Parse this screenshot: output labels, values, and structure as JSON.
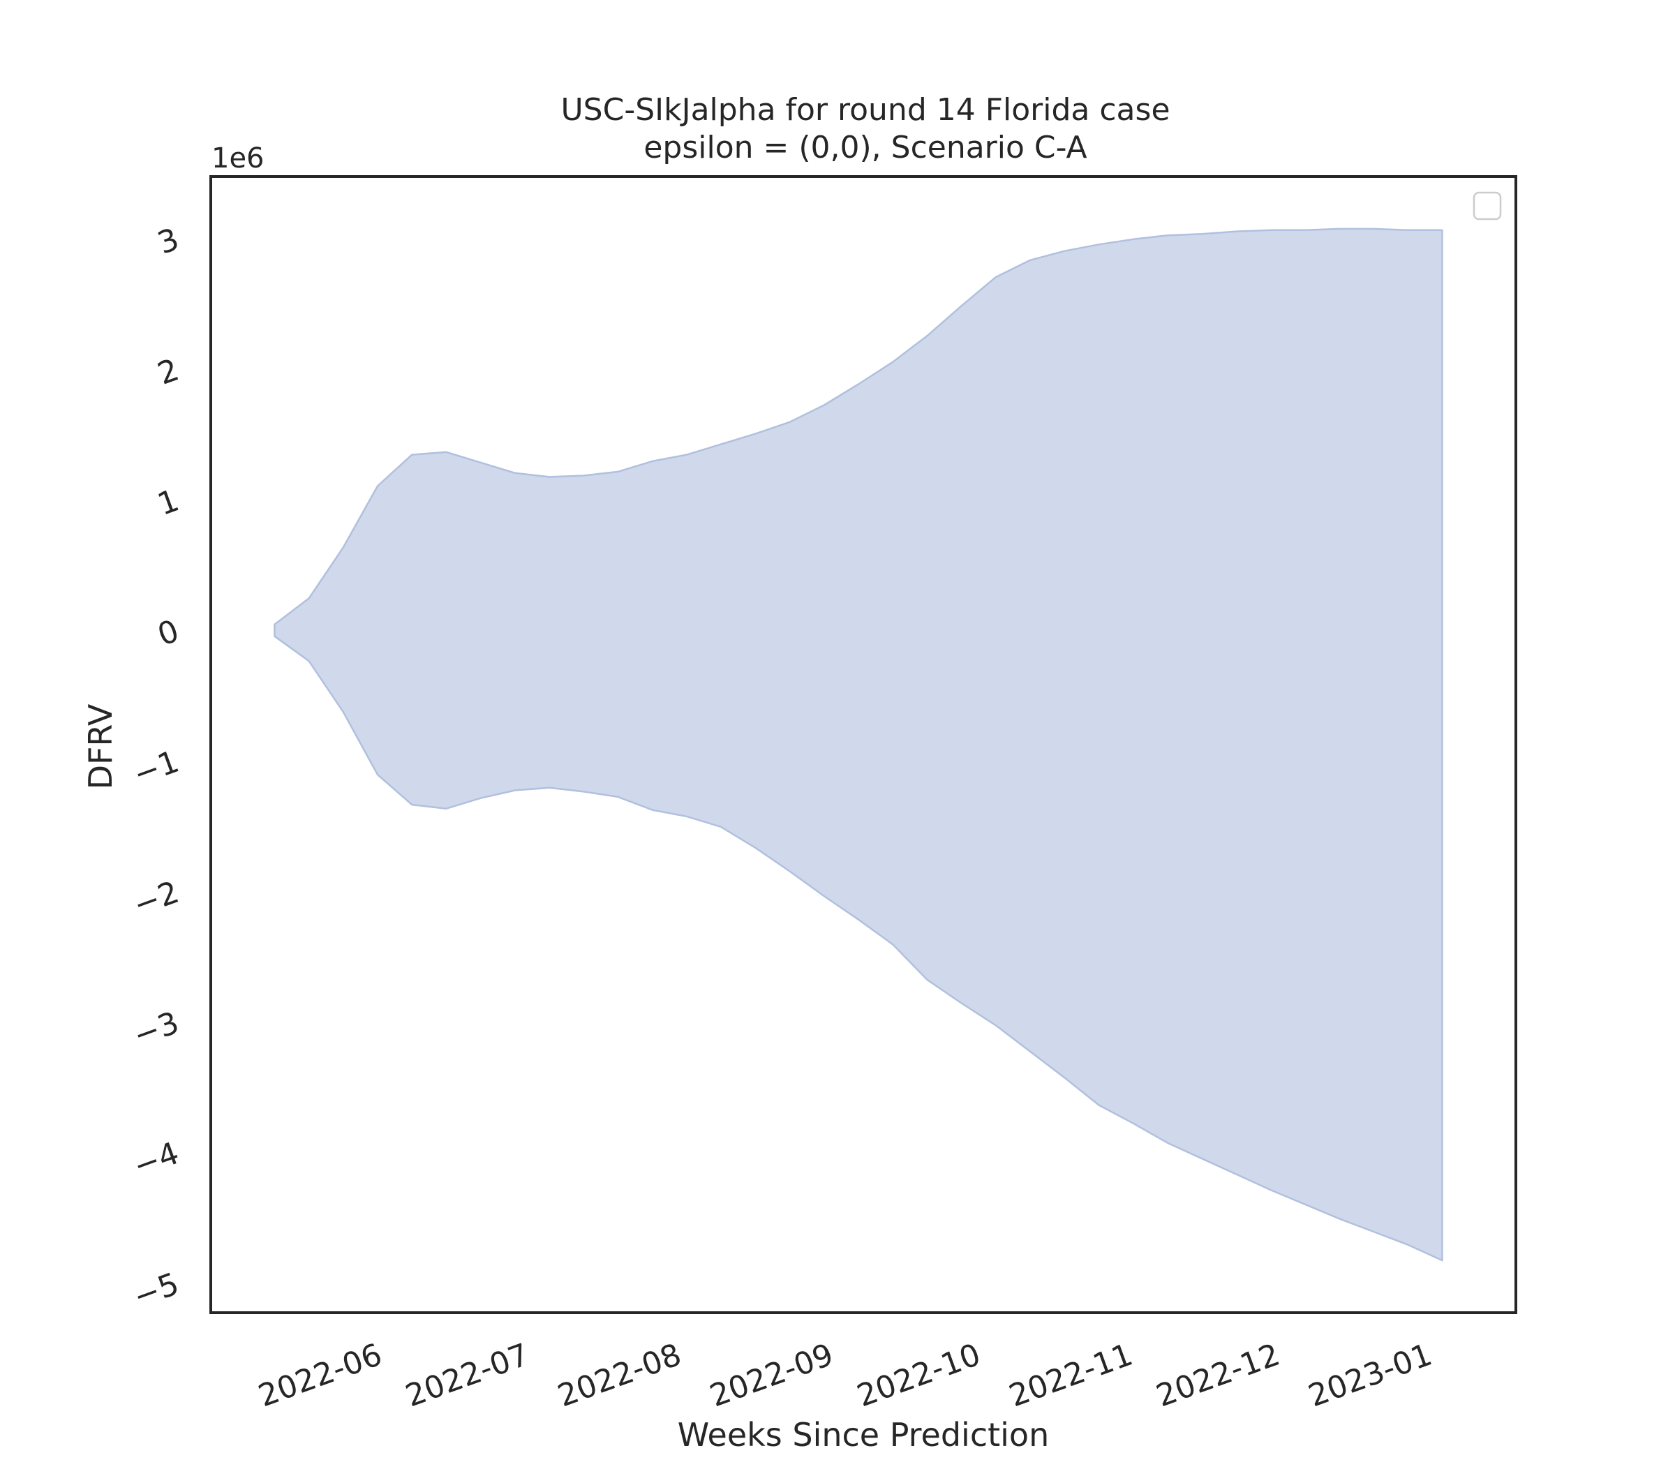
{
  "chart_data": {
    "type": "area",
    "title_line1": "USC-SIkJalpha for round 14 Florida case",
    "title_line2": "epsilon = (0,0), Scenario C-A",
    "xlabel": "Weeks Since Prediction",
    "ylabel": "DFRV",
    "y_offset_label": "1e6",
    "y_scale": 1000000,
    "ylim": [
      -5.2,
      3.5
    ],
    "y_ticks": [
      3,
      2,
      1,
      0,
      -1,
      -2,
      -3,
      -4,
      -5
    ],
    "y_tick_labels": [
      "3",
      "2",
      "1",
      "0",
      "−1",
      "−2",
      "−3",
      "−4",
      "−5"
    ],
    "xlim": [
      "2022-05-01",
      "2023-01-22"
    ],
    "x_ticks": [
      "2022-06-01",
      "2022-07-01",
      "2022-08-01",
      "2022-09-01",
      "2022-10-01",
      "2022-11-01",
      "2022-12-01",
      "2023-01-01"
    ],
    "x_tick_labels": [
      "2022-06",
      "2022-07",
      "2022-08",
      "2022-09",
      "2022-10",
      "2022-11",
      "2022-12",
      "2023-01"
    ],
    "band_color": "#b0c0de",
    "band_opacity": 0.6,
    "legend": "top-right",
    "legend_entries": [],
    "grid": false,
    "series": [
      {
        "x": [
          "2022-05-14",
          "2022-05-21",
          "2022-05-28",
          "2022-06-04",
          "2022-06-11",
          "2022-06-18",
          "2022-06-25",
          "2022-07-02",
          "2022-07-09",
          "2022-07-16",
          "2022-07-23",
          "2022-07-30",
          "2022-08-06",
          "2022-08-13",
          "2022-08-20",
          "2022-08-27",
          "2022-09-03",
          "2022-09-10",
          "2022-09-17",
          "2022-09-24",
          "2022-10-01",
          "2022-10-08",
          "2022-10-15",
          "2022-10-22",
          "2022-10-29",
          "2022-11-05",
          "2022-11-12",
          "2022-11-19",
          "2022-11-26",
          "2022-12-03",
          "2022-12-10",
          "2022-12-17",
          "2022-12-24",
          "2022-12-31",
          "2023-01-07"
        ],
        "upper": [
          0.07,
          0.27,
          0.66,
          1.13,
          1.37,
          1.39,
          1.31,
          1.23,
          1.2,
          1.21,
          1.24,
          1.32,
          1.37,
          1.45,
          1.53,
          1.62,
          1.75,
          1.91,
          2.08,
          2.28,
          2.51,
          2.73,
          2.86,
          2.93,
          2.98,
          3.02,
          3.05,
          3.06,
          3.08,
          3.09,
          3.09,
          3.1,
          3.1,
          3.09,
          3.09
        ],
        "lower": [
          -0.02,
          -0.21,
          -0.6,
          -1.08,
          -1.31,
          -1.34,
          -1.26,
          -1.2,
          -1.18,
          -1.21,
          -1.25,
          -1.35,
          -1.4,
          -1.48,
          -1.64,
          -1.82,
          -2.01,
          -2.19,
          -2.38,
          -2.65,
          -2.83,
          -3.0,
          -3.2,
          -3.4,
          -3.61,
          -3.75,
          -3.9,
          -4.02,
          -4.14,
          -4.26,
          -4.37,
          -4.48,
          -4.58,
          -4.68,
          -4.8
        ]
      }
    ]
  }
}
